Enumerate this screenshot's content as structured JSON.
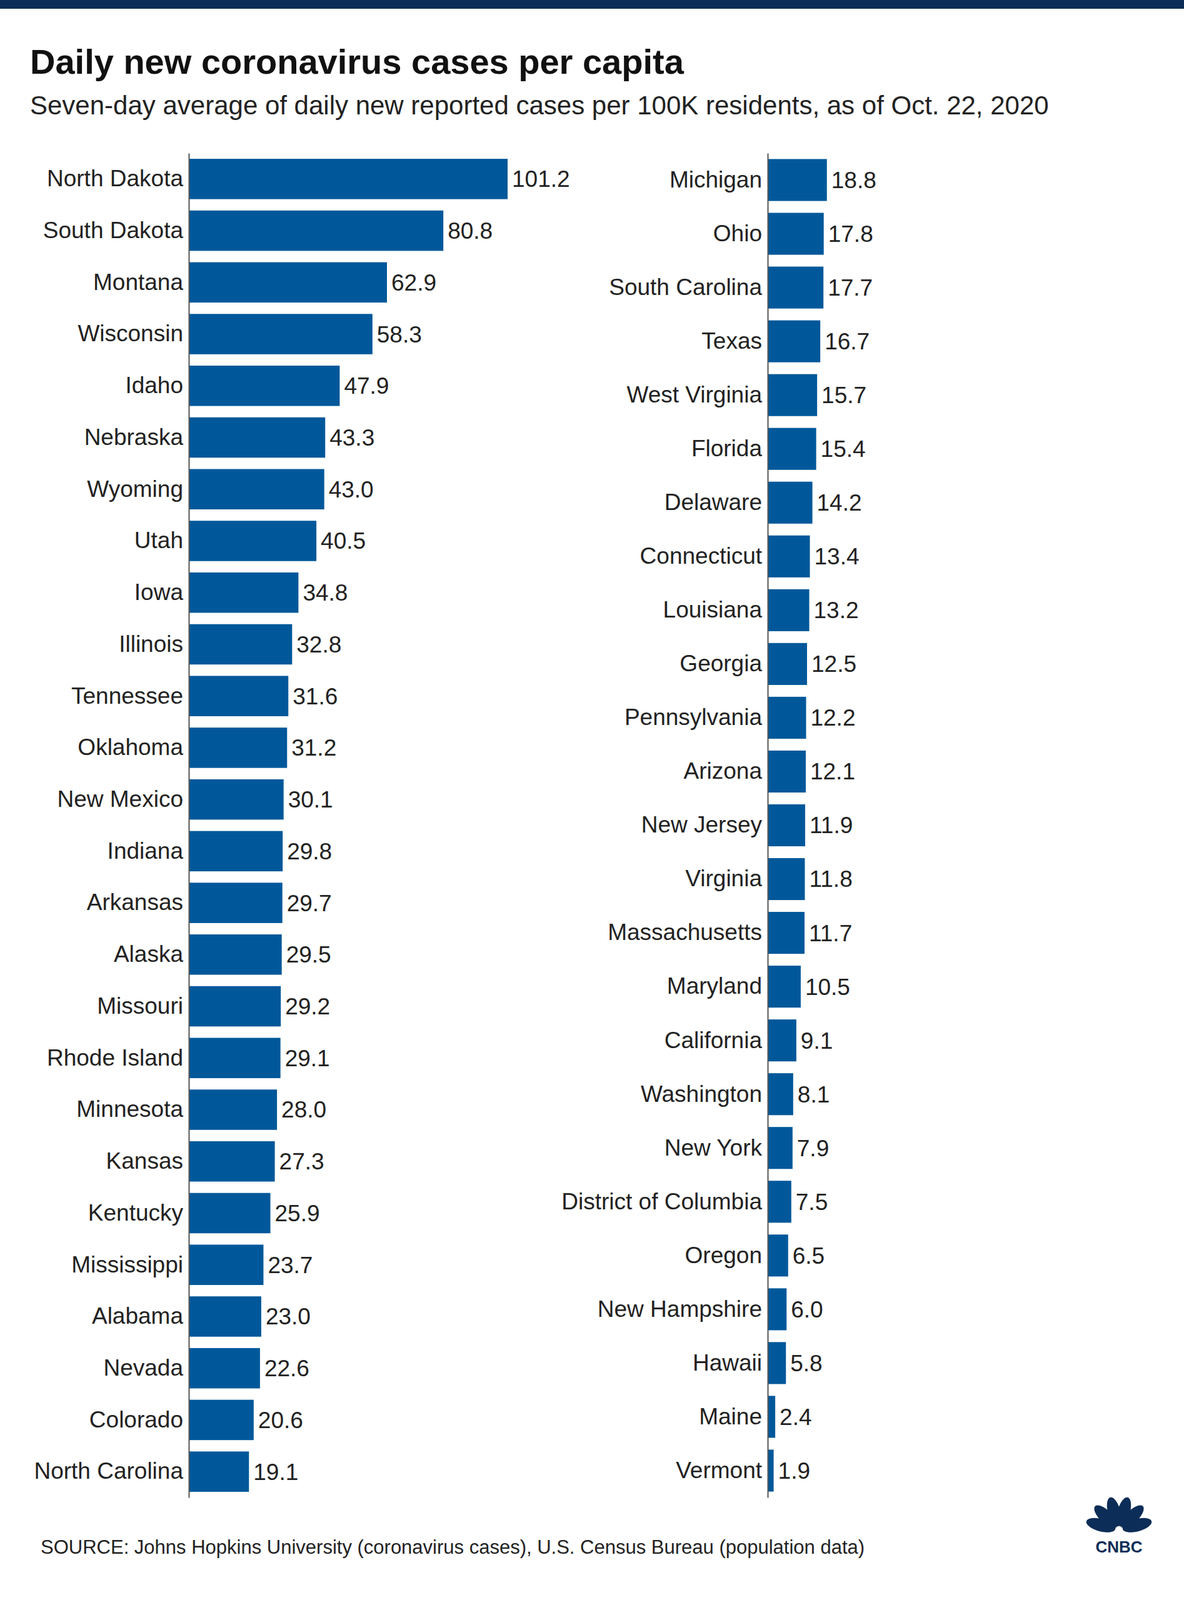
{
  "chart_data": {
    "type": "bar",
    "orientation": "horizontal",
    "title": "Daily new coronavirus cases per capita",
    "subtitle": "Seven-day average of daily new reported cases per 100K residents, as of Oct. 22, 2020",
    "source": "SOURCE: Johns Hopkins University (coronavirus cases), U.S. Census Bureau (population data)",
    "logo": "CNBC",
    "categories": [
      "North Dakota",
      "South Dakota",
      "Montana",
      "Wisconsin",
      "Idaho",
      "Nebraska",
      "Wyoming",
      "Utah",
      "Iowa",
      "Illinois",
      "Tennessee",
      "Oklahoma",
      "New Mexico",
      "Indiana",
      "Arkansas",
      "Alaska",
      "Missouri",
      "Rhode Island",
      "Minnesota",
      "Kansas",
      "Kentucky",
      "Mississippi",
      "Alabama",
      "Nevada",
      "Colorado",
      "North Carolina",
      "Michigan",
      "Ohio",
      "South Carolina",
      "Texas",
      "West Virginia",
      "Florida",
      "Delaware",
      "Connecticut",
      "Louisiana",
      "Georgia",
      "Pennsylvania",
      "Arizona",
      "New Jersey",
      "Virginia",
      "Massachusetts",
      "Maryland",
      "California",
      "Washington",
      "New York",
      "District of Columbia",
      "Oregon",
      "New Hampshire",
      "Hawaii",
      "Maine",
      "Vermont"
    ],
    "values": [
      101.2,
      80.8,
      62.9,
      58.3,
      47.9,
      43.3,
      43.0,
      40.5,
      34.8,
      32.8,
      31.6,
      31.2,
      30.1,
      29.8,
      29.7,
      29.5,
      29.2,
      29.1,
      28.0,
      27.3,
      25.9,
      23.7,
      23.0,
      22.6,
      20.6,
      19.1,
      18.8,
      17.8,
      17.7,
      16.7,
      15.7,
      15.4,
      14.2,
      13.4,
      13.2,
      12.5,
      12.2,
      12.1,
      11.9,
      11.8,
      11.7,
      10.5,
      9.1,
      8.1,
      7.9,
      7.5,
      6.5,
      6.0,
      5.8,
      2.4,
      1.9
    ],
    "value_labels": [
      "101.2",
      "80.8",
      "62.9",
      "58.3",
      "47.9",
      "43.3",
      "43.0",
      "40.5",
      "34.8",
      "32.8",
      "31.6",
      "31.2",
      "30.1",
      "29.8",
      "29.7",
      "29.5",
      "29.2",
      "29.1",
      "28.0",
      "27.3",
      "25.9",
      "23.7",
      "23.0",
      "22.6",
      "20.6",
      "19.1",
      "18.8",
      "17.8",
      "17.7",
      "16.7",
      "15.7",
      "15.4",
      "14.2",
      "13.4",
      "13.2",
      "12.5",
      "12.2",
      "12.1",
      "11.9",
      "11.8",
      "11.7",
      "10.5",
      "9.1",
      "8.1",
      "7.9",
      "7.5",
      "6.5",
      "6.0",
      "5.8",
      "2.4",
      "1.9"
    ],
    "color": "#00589a",
    "xlim": [
      0,
      101.2
    ],
    "data_labels": true,
    "tick_labels": "y"
  }
}
